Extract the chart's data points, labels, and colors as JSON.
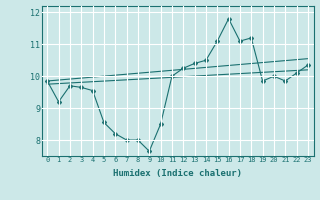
{
  "xlabel": "Humidex (Indice chaleur)",
  "background_color": "#cce8e8",
  "grid_color": "#ffffff",
  "line_color": "#1a7070",
  "xlim": [
    -0.5,
    23.5
  ],
  "ylim": [
    7.5,
    12.2
  ],
  "yticks": [
    8,
    9,
    10,
    11,
    12
  ],
  "xticks": [
    0,
    1,
    2,
    3,
    4,
    5,
    6,
    7,
    8,
    9,
    10,
    11,
    12,
    13,
    14,
    15,
    16,
    17,
    18,
    19,
    20,
    21,
    22,
    23
  ],
  "series": [
    {
      "x": [
        0,
        1,
        2,
        3,
        4,
        5,
        6,
        7,
        8,
        9,
        10,
        11,
        12,
        13,
        14,
        15,
        16,
        17,
        18,
        19,
        20,
        21,
        22,
        23
      ],
      "y": [
        9.85,
        9.2,
        9.7,
        9.65,
        9.55,
        8.55,
        8.2,
        8.0,
        8.0,
        7.65,
        8.5,
        10.0,
        10.25,
        10.4,
        10.5,
        11.1,
        11.8,
        11.1,
        11.2,
        9.85,
        10.0,
        9.85,
        10.1,
        10.35
      ]
    },
    {
      "x": [
        0,
        23
      ],
      "y": [
        9.85,
        10.55
      ]
    },
    {
      "x": [
        0,
        23
      ],
      "y": [
        9.75,
        10.2
      ]
    }
  ]
}
